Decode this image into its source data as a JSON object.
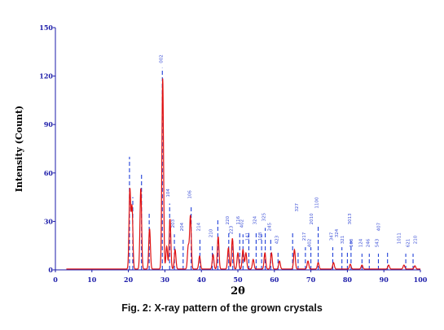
{
  "caption": "Fig. 2: X-ray pattern of the grown crystals",
  "chart_data": {
    "type": "line",
    "title": "",
    "xlabel": "2θ",
    "ylabel": "Intensity (Count)",
    "xlim": [
      0,
      100
    ],
    "ylim": [
      0,
      150
    ],
    "xticks": [
      0,
      10,
      20,
      30,
      40,
      50,
      60,
      70,
      80,
      90,
      100
    ],
    "yticks": [
      0,
      30,
      60,
      90,
      120,
      150
    ],
    "ytick_labels": [
      "0",
      "30",
      "60",
      "90",
      "120",
      "150"
    ],
    "grid": false,
    "colors": {
      "pattern": "#e01010",
      "reference_lines": "#1f3fd8",
      "axis": "#1a1aa8"
    },
    "series": [
      {
        "peaks": [
          {
            "x": 20.4,
            "y": 49
          },
          {
            "x": 21.0,
            "y": 38
          },
          {
            "x": 23.4,
            "y": 50
          },
          {
            "x": 25.8,
            "y": 25
          },
          {
            "x": 29.4,
            "y": 118
          },
          {
            "x": 30.5,
            "y": 14
          },
          {
            "x": 31.4,
            "y": 31
          },
          {
            "x": 32.8,
            "y": 12
          },
          {
            "x": 36.4,
            "y": 14
          },
          {
            "x": 37.0,
            "y": 33
          },
          {
            "x": 39.5,
            "y": 8
          },
          {
            "x": 43.2,
            "y": 9
          },
          {
            "x": 44.6,
            "y": 20
          },
          {
            "x": 47.4,
            "y": 13
          },
          {
            "x": 48.5,
            "y": 19
          },
          {
            "x": 50.0,
            "y": 10
          },
          {
            "x": 51.4,
            "y": 12
          },
          {
            "x": 52.2,
            "y": 10
          },
          {
            "x": 54.2,
            "y": 6
          },
          {
            "x": 57.4,
            "y": 10
          },
          {
            "x": 59.2,
            "y": 10
          },
          {
            "x": 61.4,
            "y": 5
          },
          {
            "x": 65.5,
            "y": 12
          },
          {
            "x": 69.2,
            "y": 5
          },
          {
            "x": 72.0,
            "y": 4
          },
          {
            "x": 76.2,
            "y": 4
          },
          {
            "x": 80.8,
            "y": 3
          },
          {
            "x": 84.0,
            "y": 2.5
          },
          {
            "x": 91.3,
            "y": 2.5
          },
          {
            "x": 95.5,
            "y": 2.5
          },
          {
            "x": 98.5,
            "y": 2
          }
        ]
      }
    ],
    "reference_lines": [
      {
        "x": 20.3,
        "y": 70
      },
      {
        "x": 21.2,
        "y": 45
      },
      {
        "x": 23.6,
        "y": 60
      },
      {
        "x": 25.7,
        "y": 35
      },
      {
        "x": 29.3,
        "y": 125
      },
      {
        "x": 31.3,
        "y": 41
      },
      {
        "x": 32.6,
        "y": 22
      },
      {
        "x": 35.0,
        "y": 20
      },
      {
        "x": 37.2,
        "y": 40
      },
      {
        "x": 39.6,
        "y": 20
      },
      {
        "x": 43.0,
        "y": 16
      },
      {
        "x": 44.5,
        "y": 32
      },
      {
        "x": 47.5,
        "y": 24
      },
      {
        "x": 48.6,
        "y": 18
      },
      {
        "x": 50.5,
        "y": 24
      },
      {
        "x": 51.4,
        "y": 22
      },
      {
        "x": 53.0,
        "y": 24
      },
      {
        "x": 55.0,
        "y": 24
      },
      {
        "x": 56.5,
        "y": 22
      },
      {
        "x": 57.5,
        "y": 26
      },
      {
        "x": 59.0,
        "y": 20
      },
      {
        "x": 61.0,
        "y": 12
      },
      {
        "x": 65.0,
        "y": 24
      },
      {
        "x": 66.5,
        "y": 12
      },
      {
        "x": 68.5,
        "y": 14
      },
      {
        "x": 70.0,
        "y": 14
      },
      {
        "x": 72.0,
        "y": 27
      },
      {
        "x": 76.0,
        "y": 14
      },
      {
        "x": 78.5,
        "y": 14
      },
      {
        "x": 80.0,
        "y": 12
      },
      {
        "x": 81.0,
        "y": 18
      },
      {
        "x": 84.0,
        "y": 10
      },
      {
        "x": 86.0,
        "y": 10
      },
      {
        "x": 88.5,
        "y": 10
      },
      {
        "x": 91.0,
        "y": 12
      },
      {
        "x": 96.0,
        "y": 10
      },
      {
        "x": 98.0,
        "y": 10
      }
    ],
    "annotations": [
      {
        "text": "002",
        "x": 29.3,
        "y": 128
      },
      {
        "text": "104",
        "x": 31.3,
        "y": 45
      },
      {
        "text": "203",
        "x": 32.6,
        "y": 26
      },
      {
        "text": "204",
        "x": 35.0,
        "y": 24
      },
      {
        "text": "106",
        "x": 37.2,
        "y": 44
      },
      {
        "text": "214",
        "x": 39.6,
        "y": 24
      },
      {
        "text": "210",
        "x": 43.0,
        "y": 20
      },
      {
        "text": "220",
        "x": 47.5,
        "y": 28
      },
      {
        "text": "223",
        "x": 48.6,
        "y": 22
      },
      {
        "text": "116",
        "x": 50.5,
        "y": 28
      },
      {
        "text": "402",
        "x": 51.4,
        "y": 26
      },
      {
        "text": "141",
        "x": 53.0,
        "y": 18
      },
      {
        "text": "324",
        "x": 55.0,
        "y": 28
      },
      {
        "text": "108",
        "x": 56.5,
        "y": 18
      },
      {
        "text": "325",
        "x": 57.5,
        "y": 30
      },
      {
        "text": "245",
        "x": 59.0,
        "y": 24
      },
      {
        "text": "423",
        "x": 61.0,
        "y": 16
      },
      {
        "text": "327",
        "x": 66.5,
        "y": 36
      },
      {
        "text": "217",
        "x": 68.5,
        "y": 18
      },
      {
        "text": "402",
        "x": 70.0,
        "y": 14
      },
      {
        "text": "2010",
        "x": 70.5,
        "y": 28
      },
      {
        "text": "1100",
        "x": 72.0,
        "y": 38
      },
      {
        "text": "347",
        "x": 76.0,
        "y": 18
      },
      {
        "text": "324",
        "x": 77.5,
        "y": 20
      },
      {
        "text": "321",
        "x": 79.0,
        "y": 16
      },
      {
        "text": "3013",
        "x": 81.0,
        "y": 28
      },
      {
        "text": "108",
        "x": 81.5,
        "y": 14
      },
      {
        "text": "124",
        "x": 84.0,
        "y": 14
      },
      {
        "text": "246",
        "x": 86.0,
        "y": 14
      },
      {
        "text": "543",
        "x": 88.5,
        "y": 14
      },
      {
        "text": "407",
        "x": 89.0,
        "y": 24
      },
      {
        "text": "1011",
        "x": 94.5,
        "y": 16
      },
      {
        "text": "621",
        "x": 97.0,
        "y": 14
      },
      {
        "text": "210",
        "x": 99.0,
        "y": 16
      }
    ]
  }
}
